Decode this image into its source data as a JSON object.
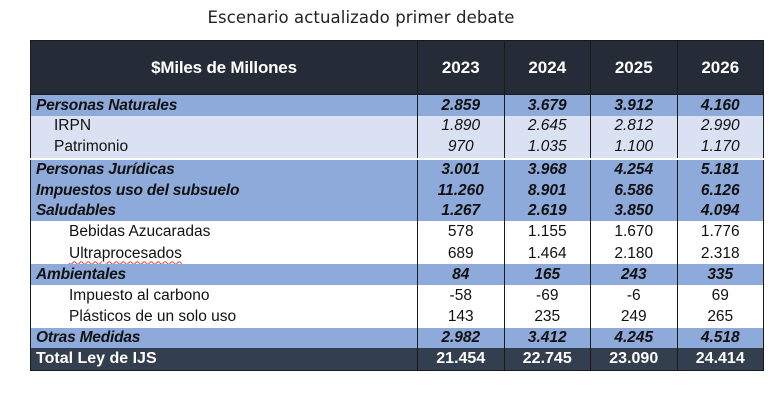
{
  "title": "Escenario actualizado primer debate",
  "table": {
    "header_label": "$Miles de Millones",
    "years": [
      "2023",
      "2024",
      "2025",
      "2026"
    ],
    "rows": [
      {
        "kind": "category",
        "label": "Personas Naturales",
        "values": [
          "2.859",
          "3.679",
          "3.912",
          "4.160"
        ]
      },
      {
        "kind": "sub-light",
        "label": "IRPN",
        "values": [
          "1.890",
          "2.645",
          "2.812",
          "2.990"
        ]
      },
      {
        "kind": "sub-light",
        "label": "Patrimonio",
        "values": [
          "970",
          "1.035",
          "1.100",
          "1.170"
        ]
      },
      {
        "kind": "category",
        "label": "Personas Jurídicas",
        "values": [
          "3.001",
          "3.968",
          "4.254",
          "5.181"
        ]
      },
      {
        "kind": "category",
        "label": "Impuestos uso del subsuelo",
        "values": [
          "11.260",
          "8.901",
          "6.586",
          "6.126"
        ]
      },
      {
        "kind": "category",
        "label": "Saludables",
        "values": [
          "1.267",
          "2.619",
          "3.850",
          "4.094"
        ]
      },
      {
        "kind": "sub-white",
        "label": "Bebidas Azucaradas",
        "values": [
          "578",
          "1.155",
          "1.670",
          "1.776"
        ]
      },
      {
        "kind": "sub-white",
        "label": "Ultraprocesados",
        "values": [
          "689",
          "1.464",
          "2.180",
          "2.318"
        ]
      },
      {
        "kind": "category",
        "label": "Ambientales",
        "values": [
          "84",
          "165",
          "243",
          "335"
        ]
      },
      {
        "kind": "sub-white",
        "label": "Impuesto al carbono",
        "values": [
          "-58",
          "-69",
          "-6",
          "69"
        ]
      },
      {
        "kind": "sub-white",
        "label": "Plásticos de un solo uso",
        "values": [
          "143",
          "235",
          "249",
          "265"
        ]
      },
      {
        "kind": "category",
        "label": "Otras Medidas",
        "values": [
          "2.982",
          "3.412",
          "4.245",
          "4.518"
        ]
      },
      {
        "kind": "total",
        "label": "Total Ley de IJS",
        "values": [
          "21.454",
          "22.745",
          "23.090",
          "24.414"
        ]
      }
    ]
  },
  "colors": {
    "header_bg": "#252c37",
    "category_bg": "#8eaadb",
    "sub_light_bg": "#d9e1f2",
    "total_bg": "#333f4f"
  }
}
